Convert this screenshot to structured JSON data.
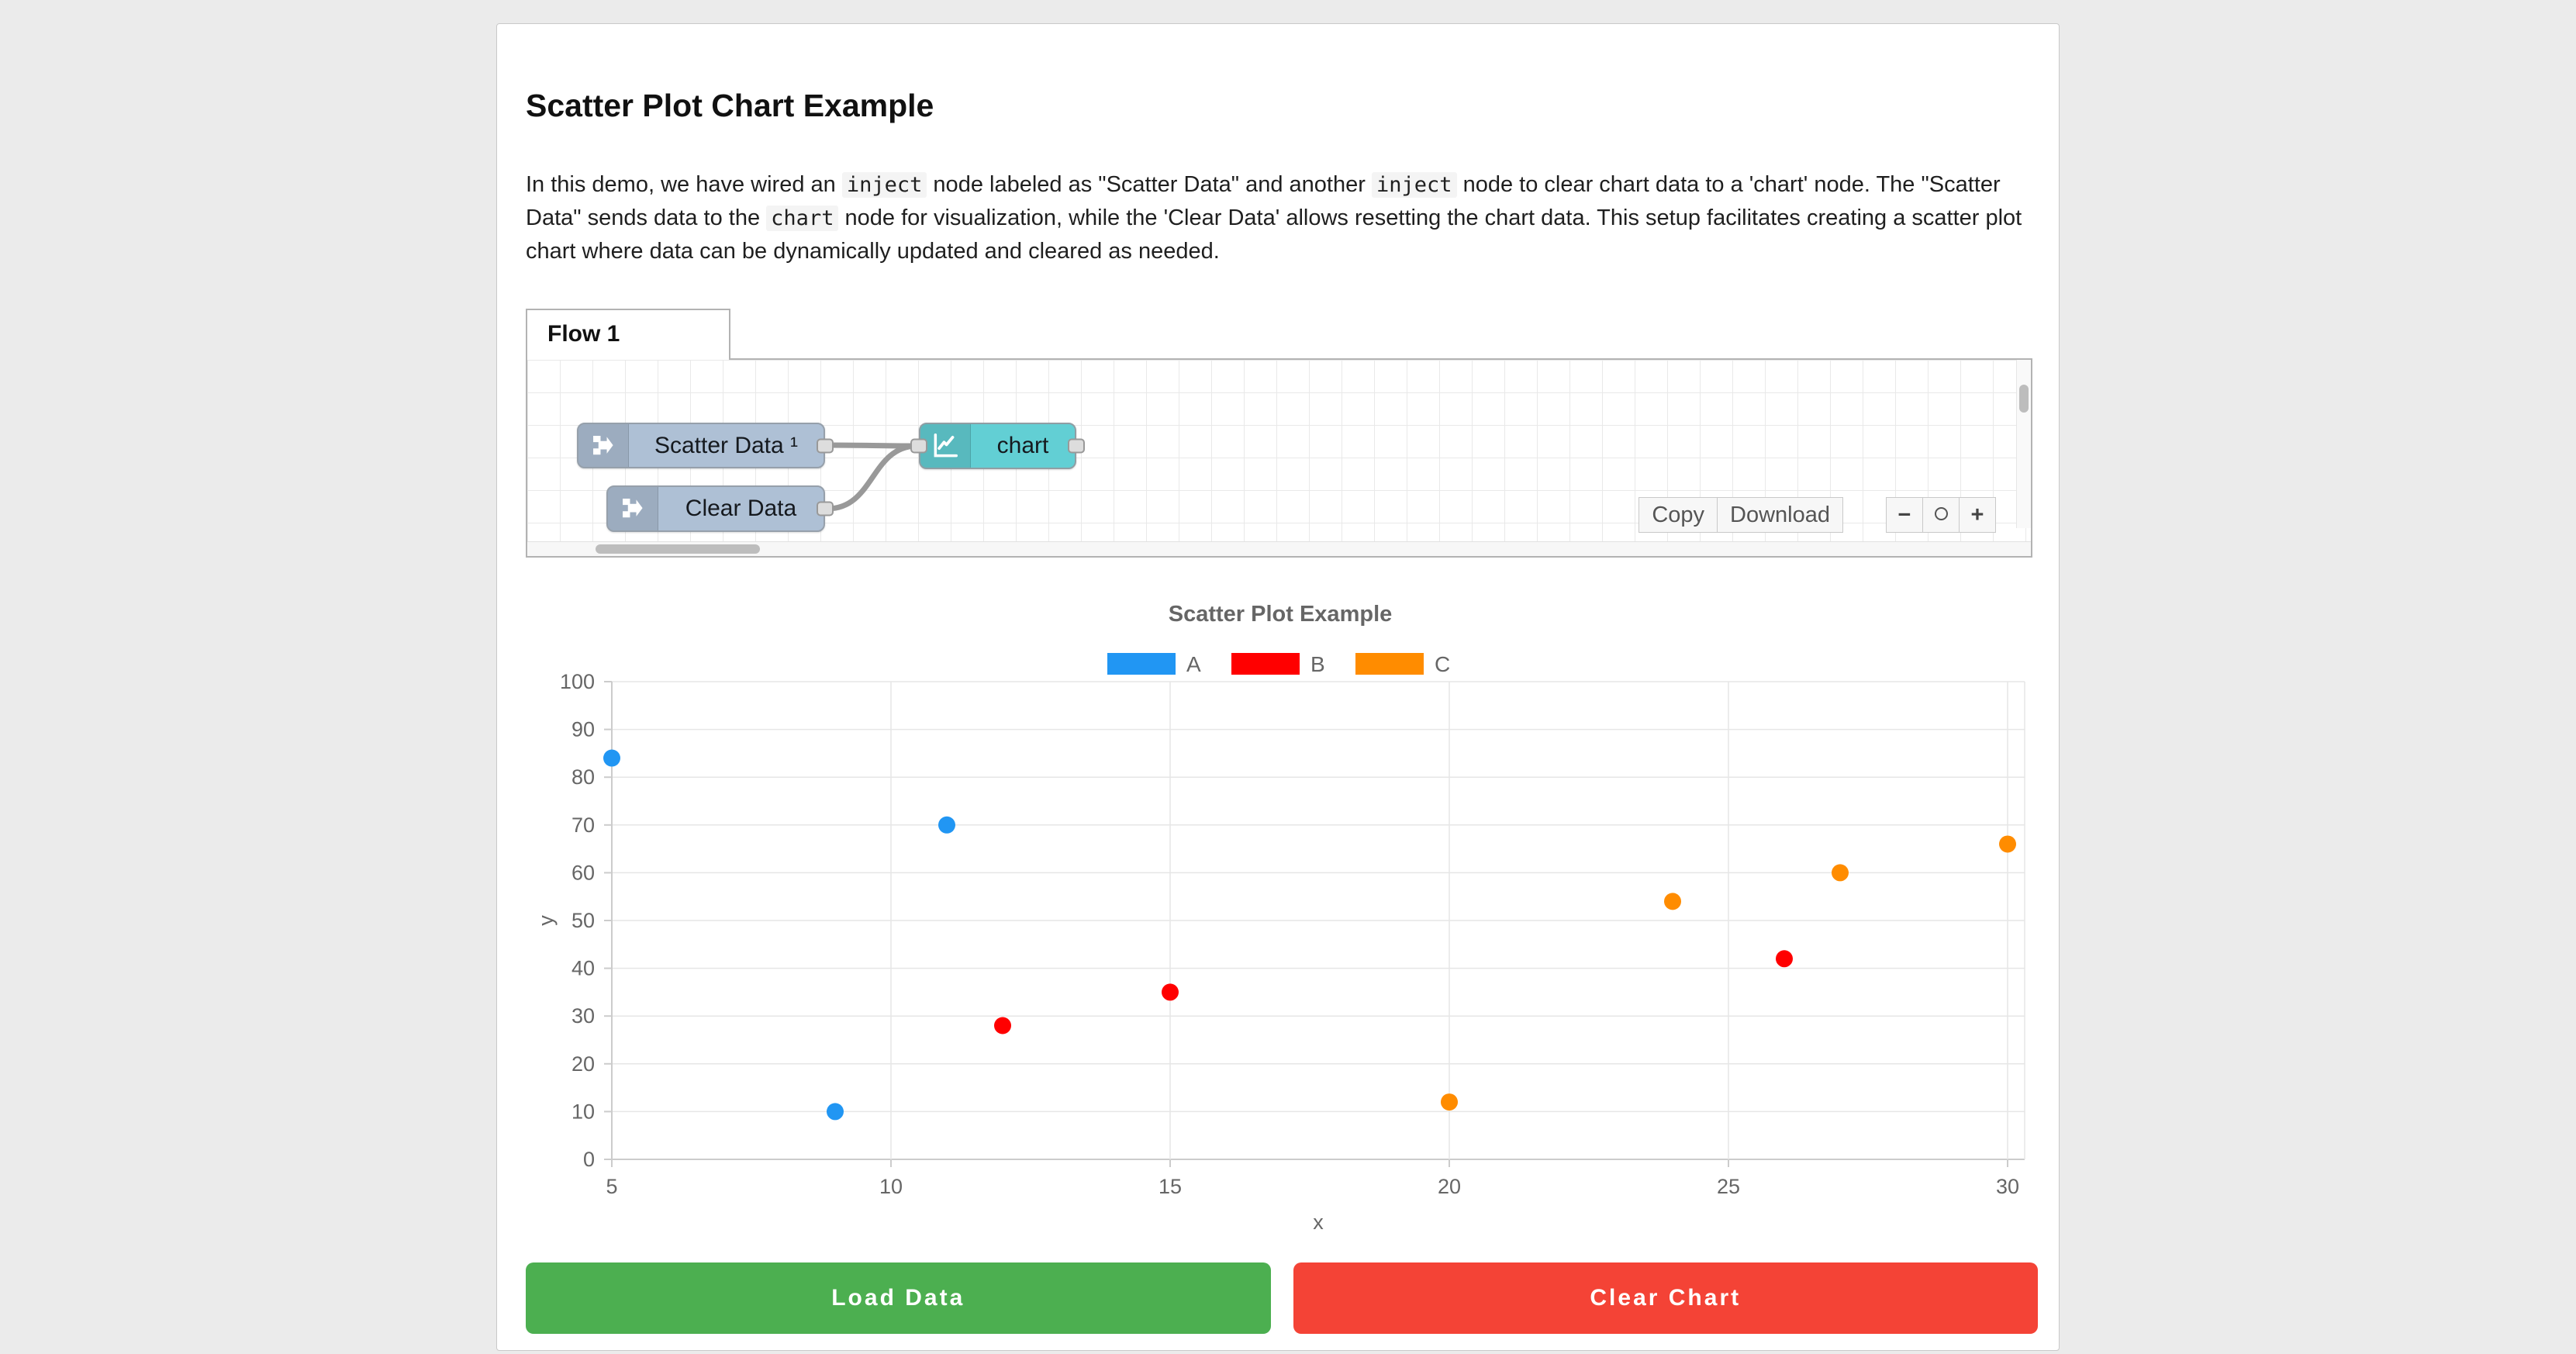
{
  "page": {
    "title": "Scatter Plot Chart Example"
  },
  "intro": {
    "segments": [
      {
        "text": "In this demo, we have wired an ",
        "code": false
      },
      {
        "text": "inject",
        "code": true
      },
      {
        "text": " node labeled as \"Scatter Data\" and another ",
        "code": false
      },
      {
        "text": "inject",
        "code": true
      },
      {
        "text": " node to clear chart data to a 'chart' node. The \"Scatter Data\" sends data to the ",
        "code": false
      },
      {
        "text": "chart",
        "code": true
      },
      {
        "text": " node for visualization, while the 'Clear Data' allows resetting the chart data. This setup facilitates creating a scatter plot chart where data can be dynamically updated and cleared as needed.",
        "code": false
      }
    ]
  },
  "flow": {
    "tab_label": "Flow 1",
    "nodes": [
      {
        "label": "Scatter Data ¹",
        "type": "inject"
      },
      {
        "label": "Clear Data",
        "type": "inject"
      },
      {
        "label": "chart",
        "type": "chart"
      }
    ],
    "toolbar": {
      "copy_label": "Copy",
      "download_label": "Download",
      "zoom_out_label": "-",
      "zoom_reset_label": "○",
      "zoom_in_label": "+"
    },
    "node_colors": {
      "inject": "#aec0d5",
      "chart": "#62cfd4"
    }
  },
  "chart_data": {
    "type": "scatter",
    "title": "Scatter Plot Example",
    "xlabel": "x",
    "ylabel": "y",
    "xlim": [
      5,
      30
    ],
    "ylim": [
      0,
      100
    ],
    "x_ticks": [
      5,
      10,
      15,
      20,
      25,
      30
    ],
    "y_ticks": [
      0,
      10,
      20,
      30,
      40,
      50,
      60,
      70,
      80,
      90,
      100
    ],
    "grid": true,
    "legend_position": "top",
    "series": [
      {
        "name": "A",
        "color": "#2196f3",
        "points": [
          [
            5,
            84
          ],
          [
            9,
            10
          ],
          [
            11,
            70
          ]
        ]
      },
      {
        "name": "B",
        "color": "#ff0000",
        "points": [
          [
            12,
            28
          ],
          [
            15,
            35
          ],
          [
            26,
            42
          ]
        ]
      },
      {
        "name": "C",
        "color": "#ff8c00",
        "points": [
          [
            20,
            12
          ],
          [
            24,
            54
          ],
          [
            27,
            60
          ],
          [
            30,
            66
          ]
        ]
      }
    ]
  },
  "actions": {
    "load_label": "Load Data",
    "load_color": "#4caf50",
    "clear_label": "Clear Chart",
    "clear_color": "#f44336"
  }
}
